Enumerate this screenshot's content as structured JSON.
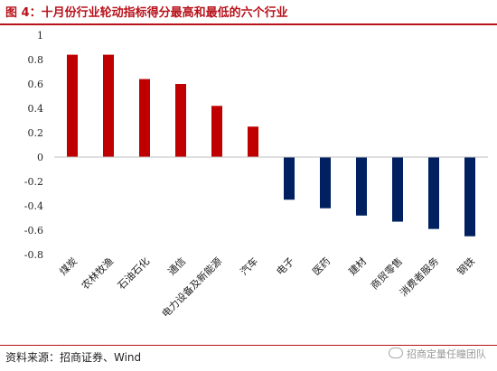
{
  "figure": {
    "title": "图 4：十月份行业轮动指标得分最高和最低的六个行业",
    "source": "资料来源：招商证券、Wind",
    "watermark": "招商定量任瞳团队"
  },
  "colors": {
    "positive": "#c00000",
    "negative": "#002060",
    "accent": "#b8121b"
  },
  "chart_data": {
    "type": "bar",
    "title": "",
    "xlabel": "",
    "ylabel": "",
    "ylim": [
      -0.8,
      1
    ],
    "yticks": [
      "1",
      "0.8",
      "0.6",
      "0.4",
      "0.2",
      "0",
      "-0.2",
      "-0.4",
      "-0.6",
      "-0.8"
    ],
    "grid": false,
    "categories": [
      "煤炭",
      "农林牧渔",
      "石油石化",
      "通信",
      "电力设备及新能源",
      "汽车",
      "电子",
      "医药",
      "建材",
      "商贸零售",
      "消费者服务",
      "钢铁"
    ],
    "values": [
      0.84,
      0.84,
      0.64,
      0.6,
      0.42,
      0.25,
      -0.35,
      -0.42,
      -0.48,
      -0.53,
      -0.59,
      -0.65
    ]
  }
}
